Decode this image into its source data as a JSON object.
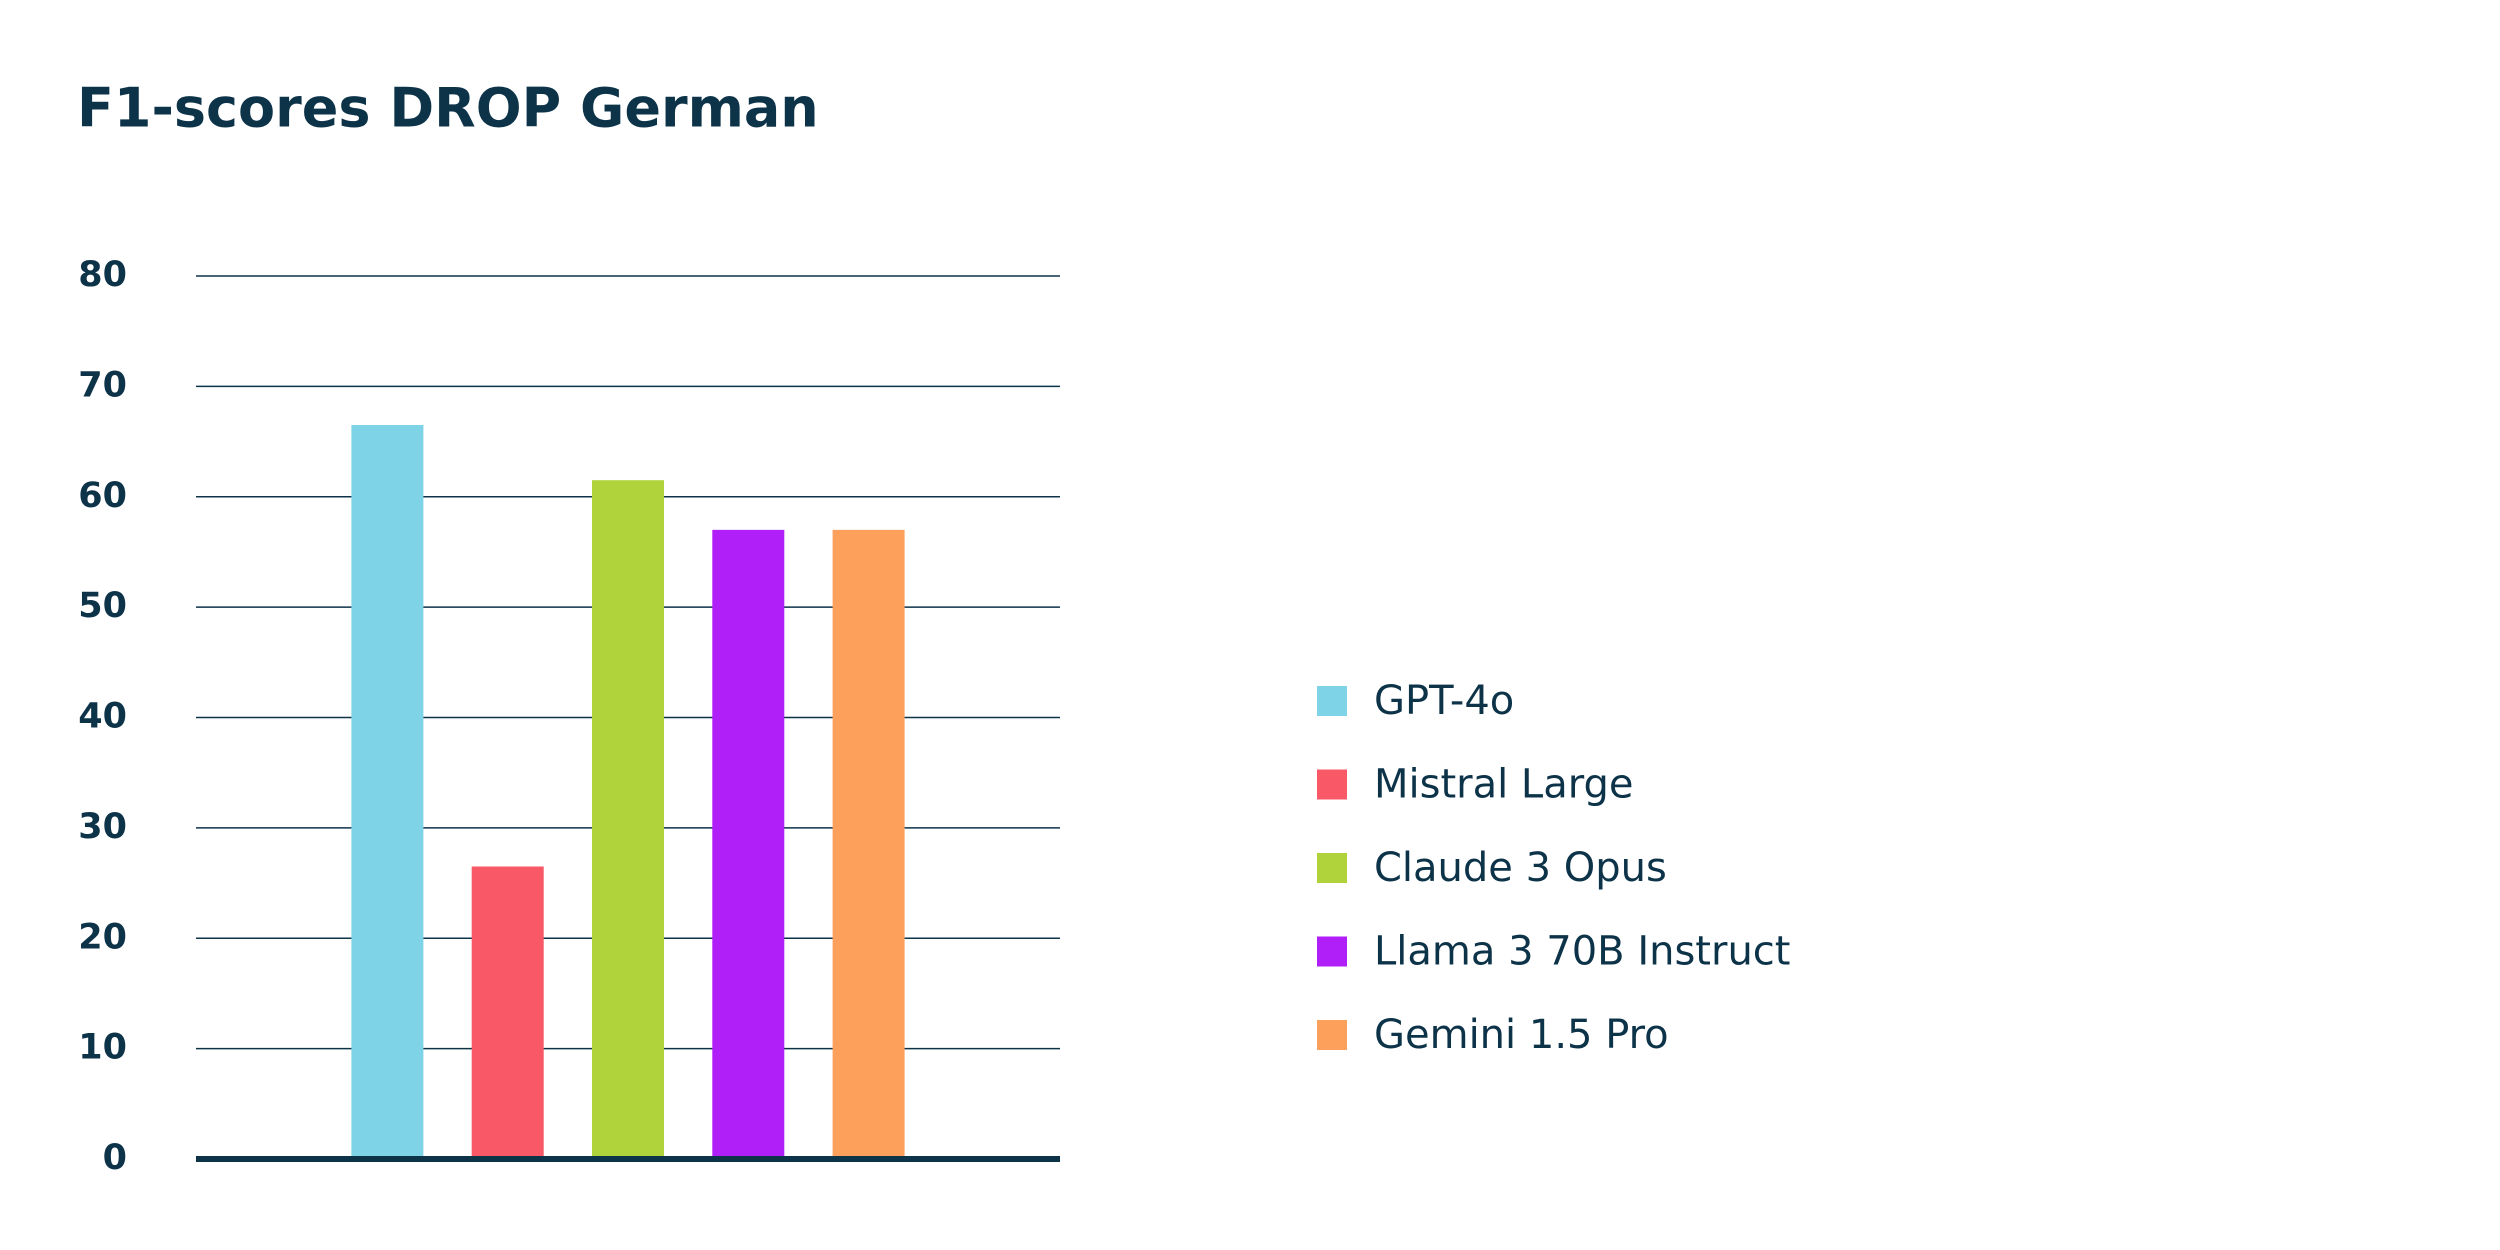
{
  "chart_data": {
    "type": "bar",
    "title": "F1-scores DROP German",
    "categories": [
      null
    ],
    "series": [
      {
        "name": "GPT-4o",
        "color": "#7fd3e6",
        "values": [
          66.5
        ]
      },
      {
        "name": "Mistral Large",
        "color": "#f95866",
        "values": [
          26.5
        ]
      },
      {
        "name": "Claude 3 Opus",
        "color": "#b0d23b",
        "values": [
          61.5
        ]
      },
      {
        "name": "Llama 3 70B Instruct",
        "color": "#b01ff7",
        "values": [
          57
        ]
      },
      {
        "name": "Gemini 1.5 Pro",
        "color": "#fda05c",
        "values": [
          57
        ]
      }
    ],
    "ylim": [
      0,
      80
    ],
    "yticks": [
      0,
      10,
      20,
      30,
      40,
      50,
      60,
      70,
      80
    ],
    "grid": true,
    "legend": "right"
  }
}
